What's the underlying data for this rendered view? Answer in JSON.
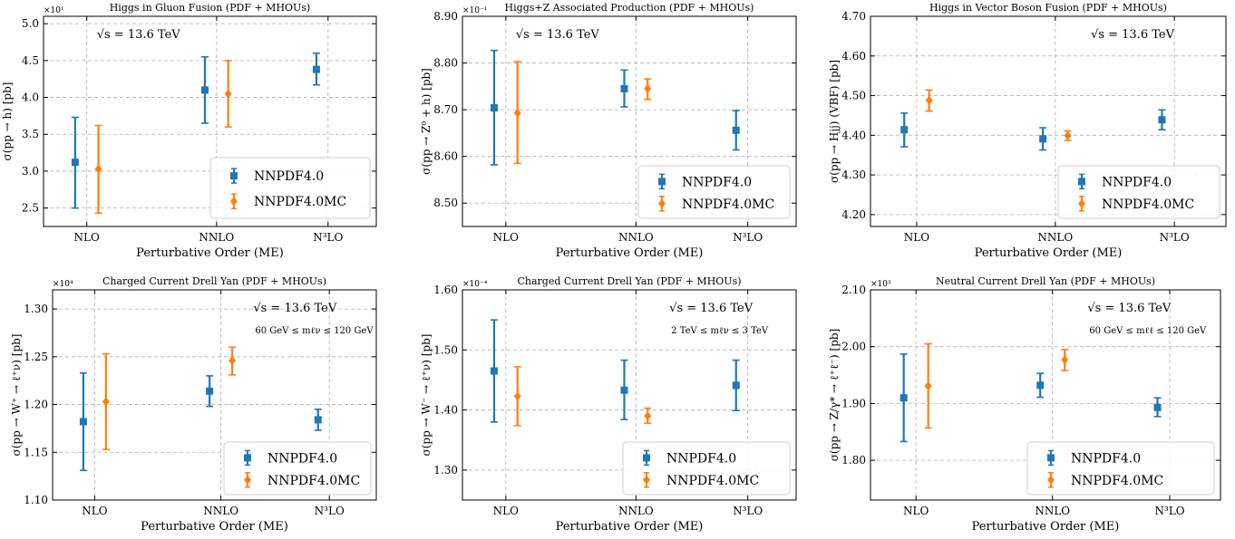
{
  "figure": {
    "sqrt_s_label": "√s = 13.6 TeV",
    "legend": [
      "NNPDF4.0",
      "NNPDF4.0MC"
    ],
    "colors": {
      "NNPDF4.0": "#1f77b4",
      "NNPDF4.0MC": "#ff7f0e",
      "grid": "#b0b0b0"
    }
  },
  "chart_data": [
    {
      "type": "scatter",
      "title": "Higgs in Gluon Fusion (PDF + MHOUs)",
      "xlabel": "Perturbative Order (ME)",
      "ylabel": "σ(pp → h) [pb]",
      "multiplier": "×10¹",
      "categories": [
        "NLO",
        "NNLO",
        "N³LO"
      ],
      "ylim": [
        2.25,
        5.1
      ],
      "yticks": [
        2.5,
        3.0,
        3.5,
        4.0,
        4.5,
        5.0
      ],
      "cut_label": "",
      "series": [
        {
          "name": "NNPDF4.0",
          "marker": "square",
          "points": [
            {
              "x": "NLO",
              "y": 3.12,
              "lo": 2.5,
              "hi": 3.73
            },
            {
              "x": "NNLO",
              "y": 4.1,
              "lo": 3.65,
              "hi": 4.55
            },
            {
              "x": "N³LO",
              "y": 4.38,
              "lo": 4.17,
              "hi": 4.6
            }
          ]
        },
        {
          "name": "NNPDF4.0MC",
          "marker": "diamond",
          "points": [
            {
              "x": "NLO",
              "y": 3.03,
              "lo": 2.43,
              "hi": 3.62
            },
            {
              "x": "NNLO",
              "y": 4.05,
              "lo": 3.6,
              "hi": 4.5
            }
          ]
        }
      ]
    },
    {
      "type": "scatter",
      "title": "Higgs+Z Associated Production (PDF + MHOUs)",
      "xlabel": "Perturbative Order (ME)",
      "ylabel": "σ(pp → Z⁰ + h) [pb]",
      "multiplier": "×10⁻¹",
      "categories": [
        "NLO",
        "NNLO",
        "N³LO"
      ],
      "ylim": [
        8.45,
        8.9
      ],
      "yticks": [
        8.5,
        8.6,
        8.7,
        8.8,
        8.9
      ],
      "cut_label": "",
      "series": [
        {
          "name": "NNPDF4.0",
          "marker": "square",
          "points": [
            {
              "x": "NLO",
              "y": 8.704,
              "lo": 8.582,
              "hi": 8.827
            },
            {
              "x": "NNLO",
              "y": 8.745,
              "lo": 8.706,
              "hi": 8.785
            },
            {
              "x": "N³LO",
              "y": 8.656,
              "lo": 8.614,
              "hi": 8.698
            }
          ]
        },
        {
          "name": "NNPDF4.0MC",
          "marker": "diamond",
          "points": [
            {
              "x": "NLO",
              "y": 8.693,
              "lo": 8.585,
              "hi": 8.803
            },
            {
              "x": "NNLO",
              "y": 8.745,
              "lo": 8.722,
              "hi": 8.766
            }
          ]
        }
      ]
    },
    {
      "type": "scatter",
      "title": "Higgs in Vector Boson Fusion (PDF + MHOUs)",
      "xlabel": "Perturbative Order (ME)",
      "ylabel": "σ(pp → Hjj) (VBF) [pb]",
      "multiplier": "",
      "categories": [
        "NLO",
        "NNLO",
        "N³LO"
      ],
      "ylim": [
        4.17,
        4.7
      ],
      "yticks": [
        4.2,
        4.3,
        4.4,
        4.5,
        4.6,
        4.7
      ],
      "cut_label": "",
      "series": [
        {
          "name": "NNPDF4.0",
          "marker": "square",
          "points": [
            {
              "x": "NLO",
              "y": 4.414,
              "lo": 4.371,
              "hi": 4.456
            },
            {
              "x": "NNLO",
              "y": 4.391,
              "lo": 4.363,
              "hi": 4.419
            },
            {
              "x": "N³LO",
              "y": 4.439,
              "lo": 4.414,
              "hi": 4.464
            }
          ]
        },
        {
          "name": "NNPDF4.0MC",
          "marker": "diamond",
          "points": [
            {
              "x": "NLO",
              "y": 4.488,
              "lo": 4.461,
              "hi": 4.514
            },
            {
              "x": "NNLO",
              "y": 4.399,
              "lo": 4.387,
              "hi": 4.411
            }
          ]
        }
      ]
    },
    {
      "type": "scatter",
      "title": "Charged Current Drell Yan (PDF + MHOUs)",
      "xlabel": "Perturbative Order (ME)",
      "ylabel": "σ(pp → W⁺ → ℓ⁺ν) [pb]",
      "multiplier": "×10⁴",
      "categories": [
        "NLO",
        "NNLO",
        "N³LO"
      ],
      "ylim": [
        1.1,
        1.32
      ],
      "yticks": [
        1.1,
        1.15,
        1.2,
        1.25,
        1.3
      ],
      "cut_label": "60 GeV ≤ mℓν ≤ 120 GeV",
      "series": [
        {
          "name": "NNPDF4.0",
          "marker": "square",
          "points": [
            {
              "x": "NLO",
              "y": 1.182,
              "lo": 1.131,
              "hi": 1.233
            },
            {
              "x": "NNLO",
              "y": 1.214,
              "lo": 1.198,
              "hi": 1.23
            },
            {
              "x": "N³LO",
              "y": 1.184,
              "lo": 1.173,
              "hi": 1.195
            }
          ]
        },
        {
          "name": "NNPDF4.0MC",
          "marker": "diamond",
          "points": [
            {
              "x": "NLO",
              "y": 1.203,
              "lo": 1.153,
              "hi": 1.253
            },
            {
              "x": "NNLO",
              "y": 1.246,
              "lo": 1.231,
              "hi": 1.26
            }
          ]
        }
      ]
    },
    {
      "type": "scatter",
      "title": "Charged Current Drell Yan (PDF + MHOUs)",
      "xlabel": "Perturbative Order (ME)",
      "ylabel": "σ(pp → W⁻ → ℓ⁺ν) [pb]",
      "multiplier": "×10⁻⁴",
      "categories": [
        "NLO",
        "NNLO",
        "N³LO"
      ],
      "ylim": [
        1.25,
        1.6
      ],
      "yticks": [
        1.3,
        1.4,
        1.5,
        1.6
      ],
      "cut_label": "2 TeV ≤ mℓν ≤ 3 TeV",
      "series": [
        {
          "name": "NNPDF4.0",
          "marker": "square",
          "points": [
            {
              "x": "NLO",
              "y": 1.465,
              "lo": 1.38,
              "hi": 1.55
            },
            {
              "x": "NNLO",
              "y": 1.433,
              "lo": 1.384,
              "hi": 1.483
            },
            {
              "x": "N³LO",
              "y": 1.441,
              "lo": 1.399,
              "hi": 1.483
            }
          ]
        },
        {
          "name": "NNPDF4.0MC",
          "marker": "diamond",
          "points": [
            {
              "x": "NLO",
              "y": 1.423,
              "lo": 1.374,
              "hi": 1.472
            },
            {
              "x": "NNLO",
              "y": 1.39,
              "lo": 1.378,
              "hi": 1.403
            }
          ]
        }
      ]
    },
    {
      "type": "scatter",
      "title": "Neutral Current Drell Yan (PDF + MHOUs)",
      "xlabel": "Perturbative Order (ME)",
      "ylabel": "σ(pp → Z/γ* → ℓ⁺ℓ⁻) [pb]",
      "multiplier": "×10³",
      "categories": [
        "NLO",
        "NNLO",
        "N³LO"
      ],
      "ylim": [
        1.73,
        2.1
      ],
      "yticks": [
        1.8,
        1.9,
        2.0,
        2.1
      ],
      "cut_label": "60 GeV ≤ mℓℓ ≤ 120 GeV",
      "series": [
        {
          "name": "NNPDF4.0",
          "marker": "square",
          "points": [
            {
              "x": "NLO",
              "y": 1.91,
              "lo": 1.833,
              "hi": 1.987
            },
            {
              "x": "NNLO",
              "y": 1.932,
              "lo": 1.911,
              "hi": 1.953
            },
            {
              "x": "N³LO",
              "y": 1.893,
              "lo": 1.877,
              "hi": 1.91
            }
          ]
        },
        {
          "name": "NNPDF4.0MC",
          "marker": "diamond",
          "points": [
            {
              "x": "NLO",
              "y": 1.931,
              "lo": 1.857,
              "hi": 2.005
            },
            {
              "x": "NNLO",
              "y": 1.977,
              "lo": 1.958,
              "hi": 1.995
            }
          ]
        }
      ]
    }
  ]
}
